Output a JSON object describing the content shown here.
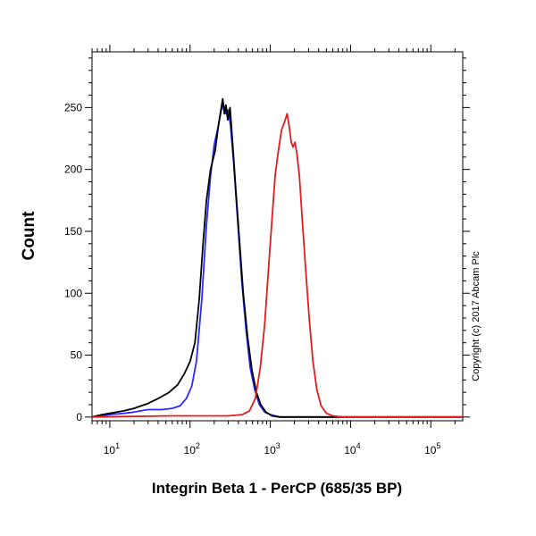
{
  "chart_data": {
    "type": "line",
    "xlabel": "Integrin Beta 1 - PerCP (685/35 BP)",
    "ylabel": "Count",
    "x_scale": "log",
    "xlim": [
      6,
      250000
    ],
    "ylim": [
      -3,
      295
    ],
    "x_ticks": [
      {
        "value": 10,
        "base": "10",
        "exp": "1"
      },
      {
        "value": 100,
        "base": "10",
        "exp": "2"
      },
      {
        "value": 1000,
        "base": "10",
        "exp": "3"
      },
      {
        "value": 10000,
        "base": "10",
        "exp": "4"
      },
      {
        "value": 100000,
        "base": "10",
        "exp": "5"
      }
    ],
    "y_ticks": [
      0,
      50,
      100,
      150,
      200,
      250
    ],
    "grid": false,
    "legend": "none",
    "annotation": "Copyright (c) 2017 Abcam Plc",
    "series": [
      {
        "color": "#2a2aff",
        "points": [
          [
            6,
            0
          ],
          [
            10,
            2
          ],
          [
            15,
            3
          ],
          [
            20,
            4
          ],
          [
            30,
            6
          ],
          [
            45,
            6
          ],
          [
            60,
            7
          ],
          [
            75,
            9
          ],
          [
            90,
            15
          ],
          [
            105,
            25
          ],
          [
            120,
            45
          ],
          [
            140,
            95
          ],
          [
            160,
            155
          ],
          [
            180,
            195
          ],
          [
            200,
            220
          ],
          [
            225,
            235
          ],
          [
            245,
            248
          ],
          [
            262,
            252
          ],
          [
            280,
            245
          ],
          [
            300,
            248
          ],
          [
            320,
            235
          ],
          [
            350,
            205
          ],
          [
            390,
            160
          ],
          [
            440,
            110
          ],
          [
            500,
            70
          ],
          [
            560,
            40
          ],
          [
            640,
            22
          ],
          [
            730,
            10
          ],
          [
            850,
            4
          ],
          [
            1000,
            2
          ],
          [
            1300,
            0
          ],
          [
            250000,
            0
          ]
        ]
      },
      {
        "color": "#000000",
        "points": [
          [
            6,
            0
          ],
          [
            8,
            2
          ],
          [
            10,
            3
          ],
          [
            15,
            5
          ],
          [
            20,
            7
          ],
          [
            30,
            11
          ],
          [
            40,
            15
          ],
          [
            55,
            20
          ],
          [
            70,
            26
          ],
          [
            85,
            35
          ],
          [
            100,
            45
          ],
          [
            115,
            60
          ],
          [
            130,
            95
          ],
          [
            145,
            140
          ],
          [
            160,
            175
          ],
          [
            180,
            200
          ],
          [
            205,
            215
          ],
          [
            225,
            235
          ],
          [
            245,
            250
          ],
          [
            255,
            257
          ],
          [
            268,
            245
          ],
          [
            280,
            252
          ],
          [
            295,
            240
          ],
          [
            315,
            250
          ],
          [
            340,
            220
          ],
          [
            370,
            185
          ],
          [
            410,
            145
          ],
          [
            460,
            100
          ],
          [
            520,
            65
          ],
          [
            590,
            38
          ],
          [
            670,
            20
          ],
          [
            760,
            10
          ],
          [
            880,
            4
          ],
          [
            1050,
            1
          ],
          [
            1300,
            0
          ],
          [
            250000,
            0
          ]
        ]
      },
      {
        "color": "#e11d1d",
        "points": [
          [
            6,
            0
          ],
          [
            60,
            1
          ],
          [
            100,
            1
          ],
          [
            300,
            1
          ],
          [
            450,
            2
          ],
          [
            550,
            5
          ],
          [
            650,
            15
          ],
          [
            750,
            40
          ],
          [
            850,
            75
          ],
          [
            950,
            120
          ],
          [
            1050,
            160
          ],
          [
            1150,
            195
          ],
          [
            1260,
            215
          ],
          [
            1380,
            232
          ],
          [
            1500,
            238
          ],
          [
            1620,
            245
          ],
          [
            1720,
            235
          ],
          [
            1820,
            222
          ],
          [
            1920,
            218
          ],
          [
            2030,
            222
          ],
          [
            2150,
            212
          ],
          [
            2300,
            195
          ],
          [
            2500,
            160
          ],
          [
            2750,
            120
          ],
          [
            3050,
            80
          ],
          [
            3400,
            45
          ],
          [
            3800,
            22
          ],
          [
            4300,
            9
          ],
          [
            5000,
            3
          ],
          [
            6000,
            1
          ],
          [
            8000,
            0
          ],
          [
            250000,
            0
          ]
        ]
      }
    ]
  }
}
